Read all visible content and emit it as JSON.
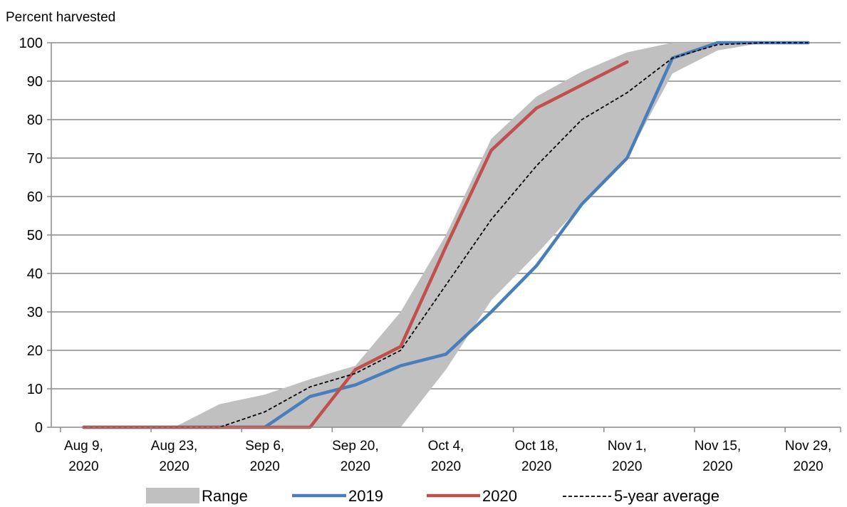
{
  "chart_data": {
    "type": "line",
    "ylabel": "Percent harvested",
    "ylim": [
      0,
      100
    ],
    "yticks": [
      0,
      10,
      20,
      30,
      40,
      50,
      60,
      70,
      80,
      90,
      100
    ],
    "xlim": [
      "2020-08-04",
      "2020-12-04"
    ],
    "xticks": [
      {
        "date": "2020-08-09",
        "label_line1": "Aug 9,",
        "label_line2": "2020"
      },
      {
        "date": "2020-08-23",
        "label_line1": "Aug 23,",
        "label_line2": "2020"
      },
      {
        "date": "2020-09-06",
        "label_line1": "Sep 6,",
        "label_line2": "2020"
      },
      {
        "date": "2020-09-20",
        "label_line1": "Sep 20,",
        "label_line2": "2020"
      },
      {
        "date": "2020-10-04",
        "label_line1": "Oct 4,",
        "label_line2": "2020"
      },
      {
        "date": "2020-10-18",
        "label_line1": "Oct 18,",
        "label_line2": "2020"
      },
      {
        "date": "2020-11-01",
        "label_line1": "Nov 1,",
        "label_line2": "2020"
      },
      {
        "date": "2020-11-15",
        "label_line1": "Nov 15,",
        "label_line2": "2020"
      },
      {
        "date": "2020-11-29",
        "label_line1": "Nov 29,",
        "label_line2": "2020"
      }
    ],
    "grid": true,
    "legend_position": "bottom",
    "range": {
      "name": "Range",
      "color": "#c0c0c0",
      "dates": [
        "2020-08-09",
        "2020-08-16",
        "2020-08-23",
        "2020-08-30",
        "2020-09-06",
        "2020-09-13",
        "2020-09-20",
        "2020-09-27",
        "2020-10-04",
        "2020-10-11",
        "2020-10-18",
        "2020-10-25",
        "2020-11-01",
        "2020-11-08",
        "2020-11-15",
        "2020-11-22",
        "2020-11-29"
      ],
      "low": [
        0,
        0,
        0,
        0,
        0,
        0,
        0,
        0,
        15,
        33,
        45,
        58,
        70,
        92,
        98,
        100,
        100
      ],
      "high": [
        0,
        0,
        0,
        6,
        8.5,
        12.5,
        16,
        30,
        50,
        75,
        86,
        92.5,
        97.5,
        100,
        100,
        100,
        100
      ]
    },
    "series": [
      {
        "name": "2019",
        "color": "#4a7ebb",
        "points": [
          [
            "2020-08-09",
            0
          ],
          [
            "2020-08-16",
            0
          ],
          [
            "2020-08-23",
            0
          ],
          [
            "2020-08-30",
            0
          ],
          [
            "2020-09-06",
            0
          ],
          [
            "2020-09-13",
            8
          ],
          [
            "2020-09-20",
            11
          ],
          [
            "2020-09-27",
            16
          ],
          [
            "2020-10-04",
            19
          ],
          [
            "2020-10-11",
            30
          ],
          [
            "2020-10-18",
            42
          ],
          [
            "2020-10-25",
            58
          ],
          [
            "2020-11-01",
            70
          ],
          [
            "2020-11-08",
            96
          ],
          [
            "2020-11-15",
            100
          ],
          [
            "2020-11-22",
            100
          ],
          [
            "2020-11-29",
            100
          ]
        ]
      },
      {
        "name": "2020",
        "color": "#c0504d",
        "points": [
          [
            "2020-08-09",
            0
          ],
          [
            "2020-08-16",
            0
          ],
          [
            "2020-08-23",
            0
          ],
          [
            "2020-08-30",
            0
          ],
          [
            "2020-09-06",
            0
          ],
          [
            "2020-09-13",
            0
          ],
          [
            "2020-09-20",
            15
          ],
          [
            "2020-09-27",
            21
          ],
          [
            "2020-10-04",
            47
          ],
          [
            "2020-10-11",
            72
          ],
          [
            "2020-10-18",
            83
          ],
          [
            "2020-10-25",
            89
          ],
          [
            "2020-11-01",
            95
          ]
        ]
      },
      {
        "name": "5-year average",
        "color": "#000000",
        "dashed": true,
        "points": [
          [
            "2020-08-09",
            0
          ],
          [
            "2020-08-16",
            0
          ],
          [
            "2020-08-23",
            0
          ],
          [
            "2020-08-30",
            0
          ],
          [
            "2020-09-06",
            4
          ],
          [
            "2020-09-13",
            10.5
          ],
          [
            "2020-09-20",
            14
          ],
          [
            "2020-09-27",
            20
          ],
          [
            "2020-10-04",
            37
          ],
          [
            "2020-10-11",
            54
          ],
          [
            "2020-10-18",
            68
          ],
          [
            "2020-10-25",
            80
          ],
          [
            "2020-11-01",
            87
          ],
          [
            "2020-11-08",
            96
          ],
          [
            "2020-11-15",
            99.5
          ],
          [
            "2020-11-22",
            100
          ],
          [
            "2020-11-29",
            100
          ]
        ]
      }
    ]
  }
}
